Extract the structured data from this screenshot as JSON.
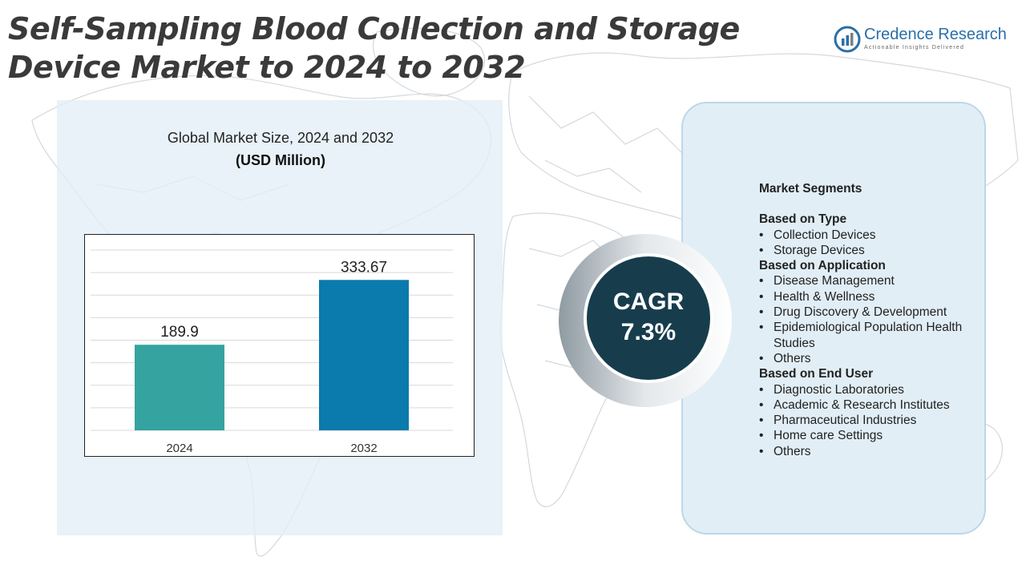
{
  "page": {
    "title": "Self-Sampling Blood Collection and Storage Device Market to 2024 to 2032"
  },
  "logo": {
    "name": "Credence Research",
    "tagline": "Actionable Insights Delivered",
    "icon": "credence-logo-icon",
    "color": "#2a6fa8"
  },
  "chart_data": {
    "type": "bar",
    "title": "Global Market Size, 2024 and 2032",
    "unit": "(USD Million)",
    "categories": [
      "2024",
      "2032"
    ],
    "values": [
      189.9,
      333.67
    ],
    "value_labels": [
      "189.9",
      "333.67"
    ],
    "colors": [
      "#35a3a0",
      "#0b7aac"
    ],
    "grid": true,
    "legend": "none"
  },
  "cagr": {
    "label": "CAGR",
    "value": "7.3%",
    "color": "#173d4d"
  },
  "segments": {
    "heading": "Market Segments",
    "groups": [
      {
        "title": "Based on Type",
        "items": [
          "Collection Devices",
          "Storage Devices"
        ]
      },
      {
        "title": "Based on Application",
        "items": [
          "Disease Management",
          "Health & Wellness",
          "Drug Discovery & Development",
          "Epidemiological Population Health Studies",
          "Others"
        ]
      },
      {
        "title": "Based on End User",
        "items": [
          "Diagnostic Laboratories",
          "Academic & Research Institutes",
          "Pharmaceutical Industries",
          "Home care Settings",
          "Others"
        ]
      }
    ]
  }
}
